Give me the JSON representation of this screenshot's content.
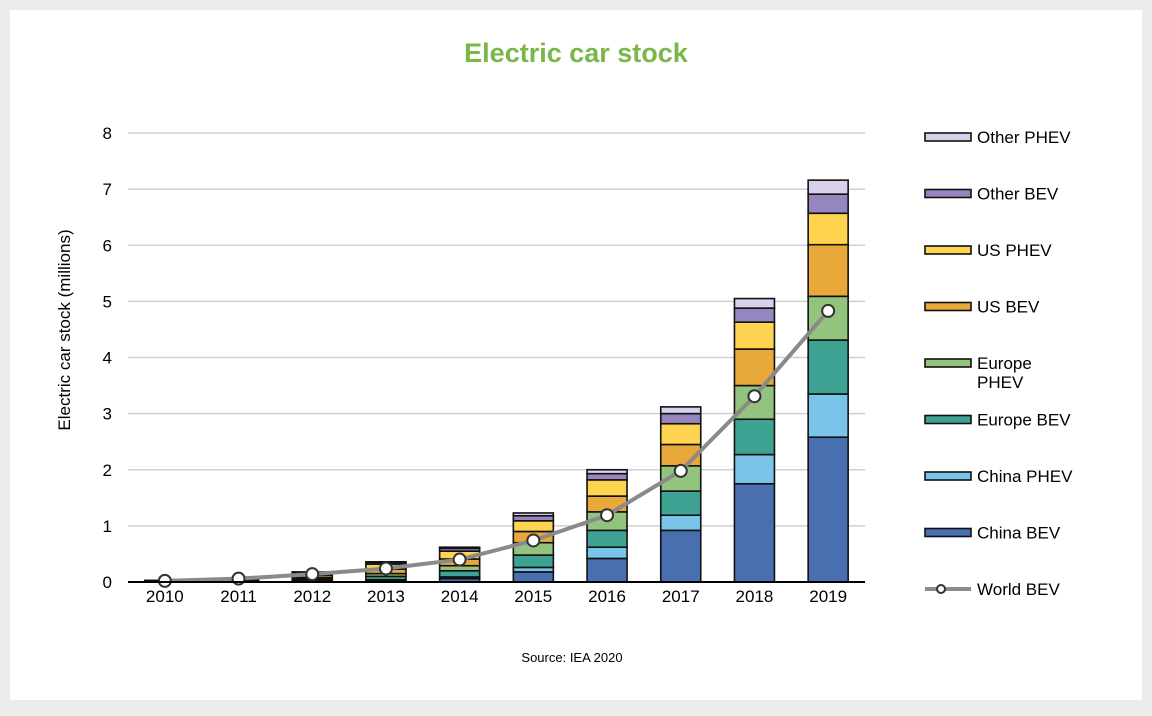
{
  "chart_data": {
    "type": "bar",
    "stacked": true,
    "title": "Electric car stock",
    "ylabel": "Electric car  stock  (millions)",
    "xlabel": "",
    "ylim": [
      0,
      8
    ],
    "yticks": [
      "0",
      "1",
      "2",
      "3",
      "4",
      "5",
      "6",
      "7",
      "8"
    ],
    "categories": [
      "2010",
      "2011",
      "2012",
      "2013",
      "2014",
      "2015",
      "2016",
      "2017",
      "2018",
      "2019"
    ],
    "grid": true,
    "legend_position": "right",
    "series": [
      {
        "name": "China BEV",
        "color": "#4a6fb0",
        "values": [
          0.01,
          0.01,
          0.02,
          0.03,
          0.06,
          0.18,
          0.42,
          0.92,
          1.75,
          2.58
        ]
      },
      {
        "name": "China PHEV",
        "color": "#7ac4ea",
        "values": [
          0.0,
          0.0,
          0.01,
          0.01,
          0.03,
          0.08,
          0.2,
          0.27,
          0.52,
          0.77
        ]
      },
      {
        "name": "Europe BEV",
        "color": "#3fa393",
        "values": [
          0.005,
          0.01,
          0.03,
          0.06,
          0.11,
          0.22,
          0.3,
          0.43,
          0.63,
          0.96
        ]
      },
      {
        "name": "Europe PHEV",
        "color": "#93c47d",
        "values": [
          0.0,
          0.01,
          0.02,
          0.05,
          0.09,
          0.22,
          0.33,
          0.45,
          0.6,
          0.78
        ]
      },
      {
        "name": "US BEV",
        "color": "#e8a83a",
        "values": [
          0.003,
          0.01,
          0.04,
          0.08,
          0.12,
          0.2,
          0.28,
          0.38,
          0.65,
          0.92
        ]
      },
      {
        "name": "US PHEV",
        "color": "#fdd350",
        "values": [
          0.0,
          0.01,
          0.04,
          0.09,
          0.14,
          0.19,
          0.29,
          0.37,
          0.48,
          0.56
        ]
      },
      {
        "name": "Other BEV",
        "color": "#9785c0",
        "values": [
          0.01,
          0.01,
          0.01,
          0.03,
          0.05,
          0.09,
          0.11,
          0.18,
          0.25,
          0.34
        ]
      },
      {
        "name": "Other PHEV",
        "color": "#d9d0eb",
        "values": [
          0.0,
          0.0,
          0.01,
          0.01,
          0.02,
          0.05,
          0.07,
          0.12,
          0.17,
          0.25
        ]
      }
    ],
    "line_series": {
      "name": "World BEV",
      "color": "#8a8a8a",
      "values": [
        0.02,
        0.06,
        0.14,
        0.24,
        0.4,
        0.74,
        1.19,
        1.98,
        3.31,
        4.83
      ]
    },
    "legend_order": [
      "Other PHEV",
      "Other BEV",
      "US PHEV",
      "US BEV",
      "Europe PHEV",
      "Europe BEV",
      "China PHEV",
      "China BEV",
      "World BEV"
    ],
    "legend_labels": {
      "Other PHEV": [
        "Other PHEV"
      ],
      "Other BEV": [
        "Other BEV"
      ],
      "US PHEV": [
        "US PHEV"
      ],
      "US BEV": [
        "US BEV"
      ],
      "Europe PHEV": [
        "Europe",
        "PHEV"
      ],
      "Europe BEV": [
        "Europe BEV"
      ],
      "China PHEV": [
        "China PHEV"
      ],
      "China BEV": [
        "China BEV"
      ],
      "World BEV": [
        "World BEV"
      ]
    },
    "source": "Source: IEA 2020",
    "title_color": "#7ab648"
  }
}
